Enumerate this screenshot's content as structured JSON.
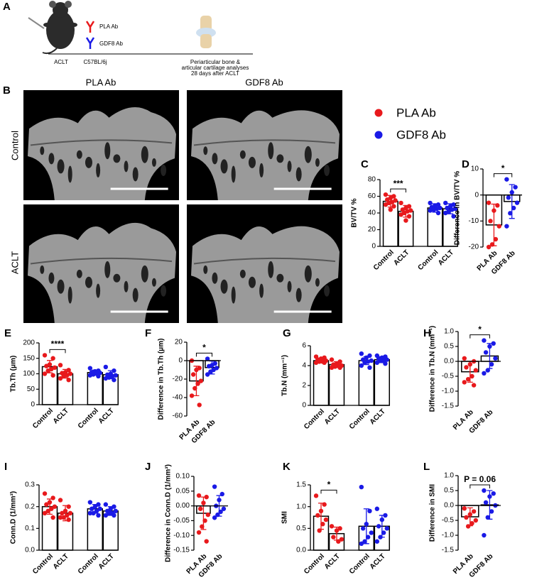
{
  "schematic": {
    "panel": "A",
    "antibody_1": "PLA Ab",
    "antibody_2": "GDF8 Ab",
    "procedure": "ACLT",
    "strain": "C57BL/6j",
    "analysis": [
      "Periarticular bone &",
      "articular cartilage analyses",
      "28 days after ACLT"
    ]
  },
  "images": {
    "panel": "B",
    "columns": [
      "PLA Ab",
      "GDF8 Ab"
    ],
    "rows": [
      "Control",
      "ACLT"
    ]
  },
  "legend": {
    "series": [
      {
        "name": "PLA Ab",
        "color": "#e8191c"
      },
      {
        "name": "GDF8 Ab",
        "color": "#1a1ae6"
      }
    ]
  },
  "chart_data": [
    {
      "panel": "C",
      "type": "bar",
      "y_label": "BV/TV %",
      "categories": [
        "Control",
        "ACLT",
        "Control",
        "ACLT"
      ],
      "colors": [
        "#e8191c",
        "#e8191c",
        "#1a1ae6",
        "#1a1ae6"
      ],
      "values": [
        54,
        42,
        46,
        45
      ],
      "errors": [
        7,
        7,
        5,
        6
      ],
      "points": [
        [
          62,
          60,
          58,
          56,
          55,
          53,
          52,
          50,
          48,
          44
        ],
        [
          52,
          48,
          46,
          44,
          43,
          42,
          40,
          38,
          36,
          31
        ],
        [
          52,
          50,
          49,
          47,
          46,
          45,
          44,
          43,
          40
        ],
        [
          52,
          50,
          48,
          46,
          45,
          44,
          42,
          40,
          36
        ]
      ],
      "ylim": [
        0,
        80
      ],
      "yticks": [
        0,
        20,
        40,
        60,
        80
      ],
      "significance": {
        "label": "***",
        "bars": [
          0,
          1
        ]
      }
    },
    {
      "panel": "D",
      "type": "bar",
      "y_label": "Difference in BV/TV %",
      "categories": [
        "PLA Ab",
        "GDF8 Ab"
      ],
      "colors": [
        "#e8191c",
        "#1a1ae6"
      ],
      "values": [
        -11.5,
        -2.5
      ],
      "errors": [
        8,
        6.5
      ],
      "points": [
        [
          -3,
          -4,
          -6,
          -10,
          -12,
          -17,
          -19,
          -20
        ],
        [
          6,
          3,
          1,
          -1,
          -3,
          -5,
          -7,
          -12
        ]
      ],
      "ylim": [
        -20,
        10
      ],
      "yticks": [
        -20,
        -10,
        0,
        10
      ],
      "significance": {
        "label": "*",
        "bars": [
          0,
          1
        ]
      }
    },
    {
      "panel": "E",
      "type": "bar",
      "y_label": "Tb.Th (μm)",
      "categories": [
        "Control",
        "ACLT",
        "Control",
        "ACLT"
      ],
      "colors": [
        "#e8191c",
        "#e8191c",
        "#1a1ae6",
        "#1a1ae6"
      ],
      "values": [
        123,
        100,
        104,
        97
      ],
      "errors": [
        20,
        14,
        8,
        13
      ],
      "points": [
        [
          160,
          150,
          130,
          125,
          120,
          115,
          110,
          100,
          95
        ],
        [
          128,
          112,
          105,
          102,
          100,
          95,
          92,
          85,
          80
        ],
        [
          118,
          110,
          108,
          105,
          103,
          100,
          98,
          95,
          92
        ],
        [
          122,
          110,
          100,
          97,
          95,
          92,
          88,
          85,
          80
        ]
      ],
      "ylim": [
        0,
        200
      ],
      "yticks": [
        0,
        50,
        100,
        150,
        200
      ],
      "significance": {
        "label": "****",
        "bars": [
          0,
          1
        ]
      }
    },
    {
      "panel": "F",
      "type": "bar",
      "y_label": "Difference in Tb.Th (μm)",
      "categories": [
        "PLA Ab",
        "GDF8 Ab"
      ],
      "colors": [
        "#e8191c",
        "#1a1ae6"
      ],
      "values": [
        -22,
        -7.5
      ],
      "errors": [
        16,
        7
      ],
      "points": [
        [
          0,
          -8,
          -10,
          -15,
          -22,
          -25,
          -30,
          -38,
          -48
        ],
        [
          2,
          -3,
          -5,
          -6,
          -8,
          -10,
          -12,
          -15
        ]
      ],
      "ylim": [
        -60,
        20
      ],
      "yticks": [
        -60,
        -40,
        -20,
        0,
        20
      ],
      "significance": {
        "label": "*",
        "bars": [
          0,
          1
        ]
      }
    },
    {
      "panel": "G",
      "type": "bar",
      "y_label": "Tb.N (mm⁻¹)",
      "categories": [
        "Control",
        "ACLT",
        "Control",
        "ACLT"
      ],
      "colors": [
        "#e8191c",
        "#e8191c",
        "#1a1ae6",
        "#1a1ae6"
      ],
      "values": [
        4.5,
        4.1,
        4.5,
        4.6
      ],
      "errors": [
        0.2,
        0.3,
        0.4,
        0.3
      ],
      "points": [
        [
          4.9,
          4.8,
          4.7,
          4.6,
          4.5,
          4.4,
          4.4,
          4.3,
          4.3
        ],
        [
          4.6,
          4.4,
          4.2,
          4.1,
          4.0,
          4.0,
          3.9,
          3.8,
          3.8
        ],
        [
          5.2,
          5.0,
          4.8,
          4.6,
          4.5,
          4.4,
          4.3,
          4.0,
          3.8
        ],
        [
          5.0,
          4.9,
          4.8,
          4.7,
          4.6,
          4.5,
          4.5,
          4.3,
          4.2
        ]
      ],
      "ylim": [
        0,
        6
      ],
      "yticks": [
        0,
        2,
        4,
        6
      ]
    },
    {
      "panel": "H",
      "type": "bar",
      "y_label": "Difference in Tb.N (mm⁻¹)",
      "categories": [
        "PLA Ab",
        "GDF8 Ab"
      ],
      "colors": [
        "#e8191c",
        "#1a1ae6"
      ],
      "values": [
        -0.35,
        0.18
      ],
      "errors": [
        0.35,
        0.42
      ],
      "points": [
        [
          0.1,
          0.0,
          -0.1,
          -0.2,
          -0.3,
          -0.5,
          -0.6,
          -0.7,
          -0.8
        ],
        [
          0.7,
          0.6,
          0.5,
          0.3,
          0.1,
          -0.1,
          -0.3,
          -0.4
        ]
      ],
      "ylim": [
        -1.5,
        1.0
      ],
      "yticks": [
        {
          "value": -1.5,
          "label": "-1.5"
        },
        {
          "value": -1,
          "label": "-1.0"
        },
        {
          "value": -0.5,
          "label": "-0.5"
        },
        {
          "value": 0,
          "label": "0.0"
        },
        {
          "value": 0.5,
          "label": "0.5"
        },
        {
          "value": 1,
          "label": "1.0"
        }
      ],
      "significance": {
        "label": "*",
        "bars": [
          0,
          1
        ]
      }
    },
    {
      "panel": "I",
      "type": "bar",
      "y_label": "Conn.D (1/mm³)",
      "categories": [
        "Control",
        "ACLT",
        "Control",
        "ACLT"
      ],
      "colors": [
        "#e8191c",
        "#e8191c",
        "#1a1ae6",
        "#1a1ae6"
      ],
      "values": [
        0.2,
        0.17,
        0.19,
        0.18
      ],
      "errors": [
        0.035,
        0.035,
        0.02,
        0.02
      ],
      "points": [
        [
          0.26,
          0.24,
          0.22,
          0.21,
          0.2,
          0.19,
          0.18,
          0.17,
          0.15
        ],
        [
          0.23,
          0.2,
          0.18,
          0.17,
          0.17,
          0.16,
          0.15,
          0.15,
          0.14
        ],
        [
          0.22,
          0.21,
          0.2,
          0.19,
          0.19,
          0.18,
          0.17,
          0.17,
          0.16
        ],
        [
          0.21,
          0.2,
          0.19,
          0.18,
          0.18,
          0.17,
          0.17,
          0.16,
          0.16
        ]
      ],
      "ylim": [
        0,
        0.3
      ],
      "yticks": [
        {
          "value": 0,
          "label": "0.0"
        },
        0.1,
        0.2,
        0.3
      ]
    },
    {
      "panel": "J",
      "type": "bar",
      "y_label": "Difference in Conn.D (1/mm³)",
      "categories": [
        "PLA Ab",
        "GDF8 Ab"
      ],
      "colors": [
        "#e8191c",
        "#1a1ae6"
      ],
      "values": [
        -0.025,
        0.0
      ],
      "errors": [
        0.055,
        0.035
      ],
      "points": [
        [
          0.035,
          0.03,
          0.01,
          -0.01,
          -0.03,
          -0.05,
          -0.07,
          -0.09,
          -0.12
        ],
        [
          0.065,
          0.04,
          0.02,
          0.0,
          -0.01,
          -0.02,
          -0.03,
          -0.04
        ]
      ],
      "ylim": [
        -0.15,
        0.1
      ],
      "yticks": [
        -0.15,
        {
          "value": -0.1,
          "label": "-0.10"
        },
        -0.05,
        {
          "value": 0,
          "label": "0.00"
        },
        0.05,
        {
          "value": 0.1,
          "label": "0.10"
        }
      ]
    },
    {
      "panel": "K",
      "type": "bar",
      "y_label": "SMI",
      "categories": [
        "Control",
        "ACLT",
        "Control",
        "ACLT"
      ],
      "colors": [
        "#e8191c",
        "#e8191c",
        "#1a1ae6",
        "#1a1ae6"
      ],
      "values": [
        0.78,
        0.38,
        0.55,
        0.55
      ],
      "errors": [
        0.3,
        0.15,
        0.4,
        0.25
      ],
      "points": [
        [
          1.25,
          1.05,
          0.9,
          0.8,
          0.7,
          0.6,
          0.45
        ],
        [
          0.55,
          0.5,
          0.45,
          0.3,
          0.25,
          0.2
        ],
        [
          1.45,
          0.9,
          0.6,
          0.5,
          0.4,
          0.3,
          0.2,
          0.15
        ],
        [
          0.95,
          0.8,
          0.7,
          0.55,
          0.5,
          0.4,
          0.3,
          0.2
        ]
      ],
      "ylim": [
        0,
        1.5
      ],
      "yticks": [
        {
          "value": 0,
          "label": "0.0"
        },
        0.5,
        {
          "value": 1,
          "label": "1.0"
        },
        1.5
      ],
      "significance": {
        "label": "*",
        "bars": [
          0,
          1
        ]
      }
    },
    {
      "panel": "L",
      "type": "bar",
      "y_label": "Difference in SMI",
      "categories": [
        "PLA Ab",
        "GDF8 Ab"
      ],
      "colors": [
        "#e8191c",
        "#1a1ae6"
      ],
      "values": [
        -0.38,
        0.02
      ],
      "errors": [
        0.3,
        0.48
      ],
      "points": [
        [
          -0.1,
          -0.2,
          -0.3,
          -0.4,
          -0.5,
          -0.6,
          -0.7
        ],
        [
          0.5,
          0.4,
          0.3,
          0.1,
          0.0,
          -0.2,
          -0.4,
          -1.0
        ]
      ],
      "ylim": [
        -1.5,
        1.0
      ],
      "yticks": [
        {
          "value": -1.5,
          "label": "-1.5"
        },
        {
          "value": -1,
          "label": "-1.0"
        },
        {
          "value": -0.5,
          "label": "-0.5"
        },
        {
          "value": 0,
          "label": "0.0"
        },
        {
          "value": 0.5,
          "label": "0.5"
        },
        {
          "value": 1,
          "label": "1.0"
        }
      ],
      "significance": {
        "label": "P = 0.06",
        "bars": [
          0,
          1
        ]
      }
    }
  ]
}
